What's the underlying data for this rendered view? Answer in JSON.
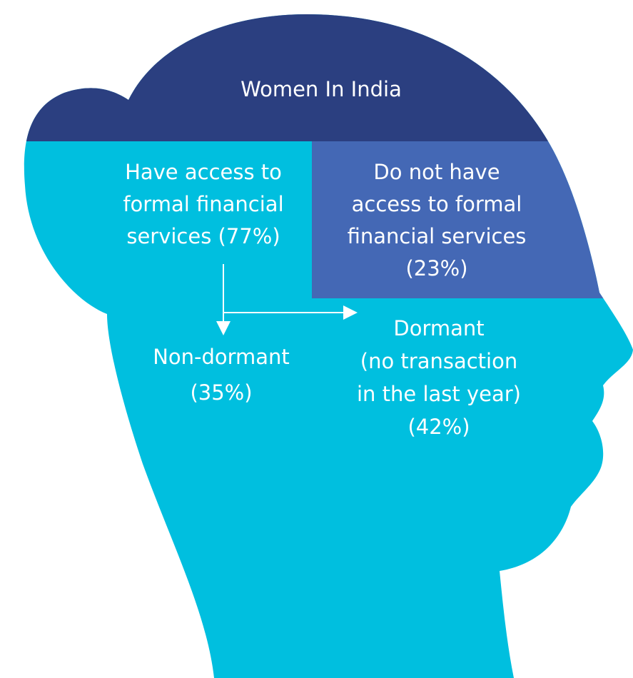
{
  "title": "Women In India",
  "blocks": [
    {
      "lines": [
        "Have access to",
        "formal financial",
        "services (77%)"
      ]
    },
    {
      "lines": [
        "Do not have",
        "access to formal",
        "financial services",
        "(23%)"
      ]
    },
    {
      "lines": [
        "Non-dormant",
        "(35%)"
      ]
    },
    {
      "lines": [
        "Dormant",
        "(no transaction",
        "in the last year)",
        "(42%)"
      ]
    }
  ]
}
